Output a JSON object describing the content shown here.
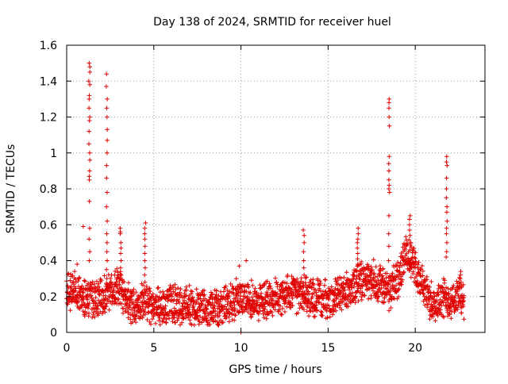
{
  "chart_data": {
    "type": "scatter",
    "title": "Day 138 of 2024, SRMTID for receiver huel",
    "xlabel": "GPS time / hours",
    "ylabel": "SRMTID / TECUs",
    "xlim": [
      0,
      24
    ],
    "ylim": [
      0,
      1.6
    ],
    "grid": true,
    "marker": "+",
    "color": "#e00000",
    "x_ticks": [
      0,
      5,
      10,
      15,
      20
    ],
    "x_tick_labels": [
      "0",
      "5",
      "10",
      "15",
      "20"
    ],
    "y_ticks": [
      0,
      0.2,
      0.4,
      0.6,
      0.8,
      1.0,
      1.2,
      1.4,
      1.6
    ],
    "y_tick_labels": [
      "0",
      "0.2",
      "0.4",
      "0.6",
      "0.8",
      "1",
      "1.2",
      "1.4",
      "1.6"
    ],
    "baseline_profile": [
      [
        0.0,
        0.22
      ],
      [
        0.5,
        0.24
      ],
      [
        1.0,
        0.2
      ],
      [
        1.5,
        0.18
      ],
      [
        2.0,
        0.2
      ],
      [
        2.5,
        0.22
      ],
      [
        3.0,
        0.25
      ],
      [
        3.5,
        0.16
      ],
      [
        4.0,
        0.15
      ],
      [
        4.5,
        0.18
      ],
      [
        5.0,
        0.14
      ],
      [
        6.0,
        0.15
      ],
      [
        7.0,
        0.16
      ],
      [
        8.0,
        0.12
      ],
      [
        9.0,
        0.15
      ],
      [
        10.0,
        0.2
      ],
      [
        11.0,
        0.17
      ],
      [
        12.0,
        0.19
      ],
      [
        13.0,
        0.22
      ],
      [
        14.0,
        0.2
      ],
      [
        15.0,
        0.18
      ],
      [
        16.0,
        0.22
      ],
      [
        17.0,
        0.3
      ],
      [
        18.0,
        0.28
      ],
      [
        18.5,
        0.22
      ],
      [
        19.0,
        0.3
      ],
      [
        19.5,
        0.45
      ],
      [
        20.0,
        0.35
      ],
      [
        20.5,
        0.25
      ],
      [
        21.0,
        0.15
      ],
      [
        21.5,
        0.2
      ],
      [
        22.0,
        0.18
      ],
      [
        22.5,
        0.2
      ],
      [
        23.0,
        0.15
      ]
    ],
    "spikes": [
      {
        "x": 1.3,
        "y": [
          1.5,
          1.48,
          1.45,
          1.4,
          1.38,
          1.32,
          1.3,
          1.25,
          1.2,
          1.18,
          1.12,
          1.05,
          1.0,
          0.96,
          0.9,
          0.87,
          0.85,
          0.73,
          0.58,
          0.52,
          0.45,
          0.4
        ]
      },
      {
        "x": 2.3,
        "y": [
          1.44,
          1.37,
          1.3,
          1.25,
          1.2,
          1.13,
          1.07,
          1.0,
          0.93,
          0.86,
          0.78,
          0.7,
          0.62,
          0.55,
          0.5,
          0.45,
          0.4,
          0.35,
          0.3
        ]
      },
      {
        "x": 3.1,
        "y": [
          0.58,
          0.56,
          0.55,
          0.5,
          0.47,
          0.44,
          0.4,
          0.36,
          0.32
        ]
      },
      {
        "x": 4.5,
        "y": [
          0.61,
          0.58,
          0.55,
          0.52,
          0.48,
          0.44,
          0.4,
          0.36,
          0.32,
          0.28
        ]
      },
      {
        "x": 13.6,
        "y": [
          0.57,
          0.54,
          0.5,
          0.45,
          0.4,
          0.36,
          0.32
        ]
      },
      {
        "x": 16.7,
        "y": [
          0.58,
          0.55,
          0.52,
          0.5,
          0.47,
          0.44,
          0.41,
          0.38
        ]
      },
      {
        "x": 18.5,
        "y": [
          1.3,
          1.28,
          1.25,
          1.2,
          1.15,
          0.98,
          0.94,
          0.9,
          0.85,
          0.82,
          0.8,
          0.78,
          0.65,
          0.55,
          0.48,
          0.4
        ]
      },
      {
        "x": 19.7,
        "y": [
          0.65,
          0.63,
          0.6,
          0.57,
          0.54,
          0.5,
          0.46
        ]
      },
      {
        "x": 21.8,
        "y": [
          0.98,
          0.95,
          0.93,
          0.86,
          0.8,
          0.75,
          0.7,
          0.67,
          0.62,
          0.58,
          0.55,
          0.5,
          0.45,
          0.42
        ]
      },
      {
        "x": 22.6,
        "y": [
          0.34,
          0.32,
          0.3,
          0.28,
          0.26
        ]
      }
    ],
    "outliers": [
      [
        10.0,
        0.0
      ],
      [
        9.9,
        0.37
      ],
      [
        10.3,
        0.4
      ],
      [
        0.95,
        0.59
      ],
      [
        0.6,
        0.38
      ]
    ]
  }
}
